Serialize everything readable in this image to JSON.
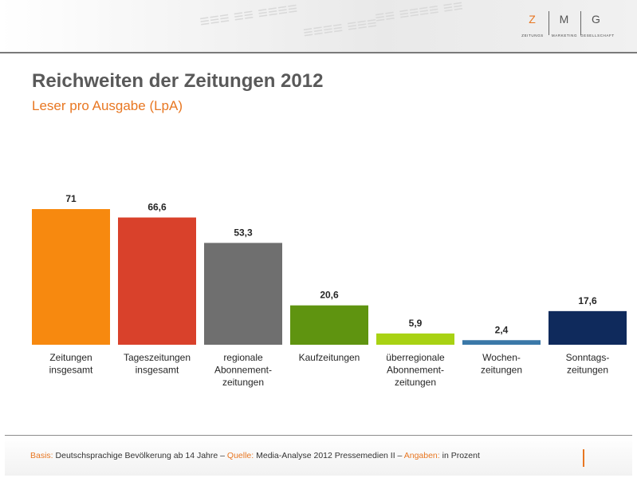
{
  "logo": {
    "letters": [
      "Z",
      "M",
      "G"
    ],
    "subs": [
      "ZEITUNGS",
      "MARKETING",
      "GESELLSCHAFT"
    ]
  },
  "title": "Reichweiten der Zeitungen 2012",
  "subtitle": "Leser pro Ausgabe (LpA)",
  "chart_data": {
    "type": "bar",
    "categories": [
      [
        "Zeitungen",
        "insgesamt"
      ],
      [
        "Tageszeitungen",
        "insgesamt"
      ],
      [
        "regionale",
        "Abonnement-",
        "zeitungen"
      ],
      [
        "Kaufzeitungen"
      ],
      [
        "überregionale",
        "Abonnement-",
        "zeitungen"
      ],
      [
        "Wochen-",
        "zeitungen"
      ],
      [
        "Sonntags-",
        "zeitungen"
      ]
    ],
    "values": [
      71,
      66.6,
      53.3,
      20.6,
      5.9,
      2.4,
      17.6
    ],
    "value_labels": [
      "71",
      "66,6",
      "53,3",
      "20,6",
      "5,9",
      "2,4",
      "17,6"
    ],
    "colors": [
      "#f7890f",
      "#d9412b",
      "#6f6f6f",
      "#5f9410",
      "#a8d213",
      "#3a78a8",
      "#0f2a5c"
    ],
    "ylim": [
      0,
      71
    ],
    "grid": false
  },
  "footer": {
    "basis_key": "Basis:",
    "basis_val": "Deutschsprachige Bevölkerung ab 14 Jahre –",
    "quelle_key": "Quelle:",
    "quelle_val": "Media-Analyse 2012 Pressemedien II –",
    "angaben_key": "Angaben:",
    "angaben_val": "in Prozent"
  }
}
